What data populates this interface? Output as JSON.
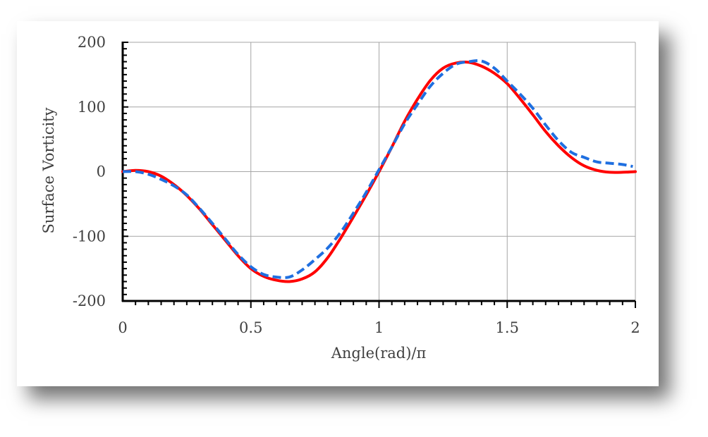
{
  "chart_data": {
    "type": "line",
    "xlabel": "Angle(rad)/π",
    "ylabel": "Surface Vorticity",
    "xlim": [
      0,
      2
    ],
    "ylim": [
      -200,
      200
    ],
    "x_ticks": [
      0,
      0.5,
      1,
      1.5,
      2
    ],
    "x_tick_labels": [
      "0",
      "0.5",
      "1",
      "1.5",
      "2"
    ],
    "y_ticks": [
      -200,
      -100,
      0,
      100,
      200
    ],
    "y_tick_labels": [
      "-200",
      "-100",
      "0",
      "100",
      "200"
    ],
    "grid": true,
    "legend": "none",
    "series": [
      {
        "color": "#ff0000",
        "style": "solid",
        "x": [
          0,
          0.05,
          0.1,
          0.15,
          0.2,
          0.25,
          0.3,
          0.35,
          0.4,
          0.45,
          0.5,
          0.55,
          0.6,
          0.65,
          0.7,
          0.75,
          0.8,
          0.85,
          0.9,
          0.95,
          1.0,
          1.05,
          1.1,
          1.15,
          1.2,
          1.25,
          1.3,
          1.35,
          1.4,
          1.45,
          1.5,
          1.55,
          1.6,
          1.65,
          1.7,
          1.75,
          1.8,
          1.85,
          1.9,
          1.95,
          2.0
        ],
        "values": [
          0,
          2,
          0,
          -7,
          -20,
          -37,
          -58,
          -82,
          -106,
          -130,
          -150,
          -162,
          -168,
          -170,
          -166,
          -155,
          -133,
          -103,
          -70,
          -36,
          0,
          38,
          78,
          112,
          141,
          160,
          168,
          169,
          163,
          152,
          136,
          113,
          88,
          62,
          40,
          22,
          9,
          2,
          -1,
          -1,
          0
        ]
      },
      {
        "color": "#1f6fe0",
        "style": "dashed",
        "x": [
          0,
          0.05,
          0.1,
          0.15,
          0.2,
          0.25,
          0.3,
          0.35,
          0.4,
          0.45,
          0.5,
          0.55,
          0.6,
          0.65,
          0.7,
          0.75,
          0.8,
          0.85,
          0.9,
          0.95,
          1.0,
          1.05,
          1.1,
          1.15,
          1.2,
          1.25,
          1.3,
          1.35,
          1.4,
          1.45,
          1.5,
          1.55,
          1.6,
          1.65,
          1.7,
          1.75,
          1.8,
          1.85,
          1.9,
          1.95,
          1.99
        ],
        "values": [
          0,
          0,
          -4,
          -12,
          -22,
          -36,
          -57,
          -80,
          -104,
          -128,
          -147,
          -159,
          -163,
          -163,
          -152,
          -136,
          -118,
          -94,
          -64,
          -32,
          3,
          38,
          74,
          104,
          132,
          152,
          166,
          170,
          171,
          160,
          140,
          120,
          98,
          72,
          48,
          30,
          22,
          15,
          13,
          11,
          8
        ]
      }
    ]
  }
}
